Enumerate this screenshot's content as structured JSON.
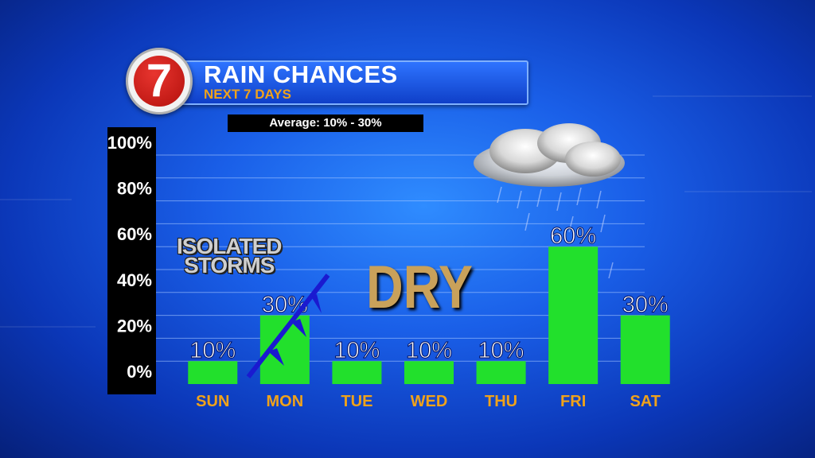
{
  "header": {
    "logo_text": "7",
    "title": "RAIN CHANCES",
    "subtitle": "NEXT 7 DAYS",
    "average": "Average: 10% - 30%"
  },
  "annotations": {
    "isolated_line1": "ISOLATED",
    "isolated_line2": "STORMS",
    "dry": "DRY"
  },
  "colors": {
    "bar": "#22e02c",
    "day_label": "#f0a21a",
    "grid": "#a8c8ff"
  },
  "chart_data": {
    "type": "bar",
    "title": "RAIN CHANCES",
    "subtitle": "NEXT 7 DAYS",
    "categories": [
      "SUN",
      "MON",
      "TUE",
      "WED",
      "THU",
      "FRI",
      "SAT"
    ],
    "values": [
      10,
      30,
      10,
      10,
      10,
      60,
      30
    ],
    "data_labels": [
      "10%",
      "30%",
      "10%",
      "10%",
      "10%",
      "60%",
      "30%"
    ],
    "ylim": [
      0,
      100
    ],
    "yticks": [
      0,
      20,
      40,
      60,
      80,
      100
    ],
    "ytick_labels": [
      "0%",
      "20%",
      "40%",
      "60%",
      "80%",
      "100%"
    ],
    "grid": true,
    "legend": "none"
  }
}
